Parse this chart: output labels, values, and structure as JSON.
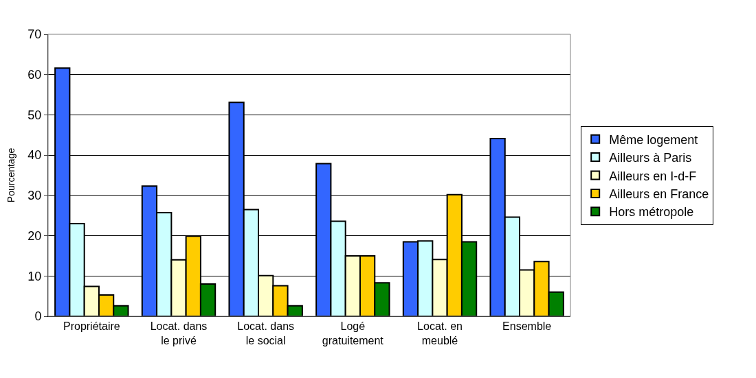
{
  "chart_data": {
    "type": "bar",
    "ylabel": "Pourcentage",
    "categories": [
      "Propriétaire",
      "Locat. dans\nle privé",
      "Locat. dans\nle social",
      "Logé\ngratuitement",
      "Locat. en\nmeublé",
      "Ensemble"
    ],
    "series": [
      {
        "name": "Même logement",
        "color": "#3366ff",
        "values": [
          61.6,
          32.3,
          53.1,
          37.9,
          18.5,
          44.1
        ]
      },
      {
        "name": "Ailleurs à Paris",
        "color": "#ccffff",
        "values": [
          23.0,
          25.7,
          26.5,
          23.6,
          18.7,
          24.6
        ]
      },
      {
        "name": "Ailleurs en I-d-F",
        "color": "#ffffcc",
        "values": [
          7.4,
          14.0,
          10.1,
          15.0,
          14.1,
          11.5
        ]
      },
      {
        "name": "Ailleurs en France",
        "color": "#ffcc00",
        "values": [
          5.3,
          19.9,
          7.6,
          15.0,
          30.2,
          13.6
        ]
      },
      {
        "name": "Hors métropole",
        "color": "#008000",
        "values": [
          2.6,
          8.0,
          2.6,
          8.3,
          18.5,
          6.0
        ]
      }
    ],
    "ylim": [
      0,
      70
    ],
    "yticks": [
      0,
      10,
      20,
      30,
      40,
      50,
      60,
      70
    ],
    "grid": "y",
    "legend": "right"
  }
}
